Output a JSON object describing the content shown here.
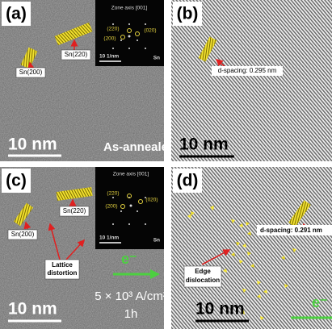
{
  "panels": [
    {
      "label": "(a)",
      "inset": {
        "title": "Zone axis [001]",
        "spots": [
          "(220)",
          "(020)",
          "(200)"
        ],
        "scale": "10 1/nm",
        "phase": "Sn"
      },
      "annotations": [
        "Sn(220)",
        "Sn(200)"
      ],
      "scale_bar": "10 nm",
      "condition": "As-annealed"
    },
    {
      "label": "(b)",
      "annotation": "d-spacing: 0.295 nm",
      "scale_bar": "10 nm"
    },
    {
      "label": "(c)",
      "inset": {
        "title": "Zone axis [001]",
        "spots": [
          "(220)",
          "(020)",
          "(200)"
        ],
        "scale": "10 1/nm",
        "phase": "Sn"
      },
      "annotations": [
        "Sn(220)",
        "Sn(200)"
      ],
      "defect": [
        "Lattice",
        "distortion"
      ],
      "scale_bar": "10 nm",
      "electron": "e⁻",
      "current_density": "5 × 10³ A/cm²",
      "duration": "1h"
    },
    {
      "label": "(d)",
      "annotation": "d-spacing: 0.291 nm",
      "defect": [
        "Edge",
        "dislocation"
      ],
      "scale_bar": "10 nm",
      "electron": "e⁻"
    }
  ]
}
